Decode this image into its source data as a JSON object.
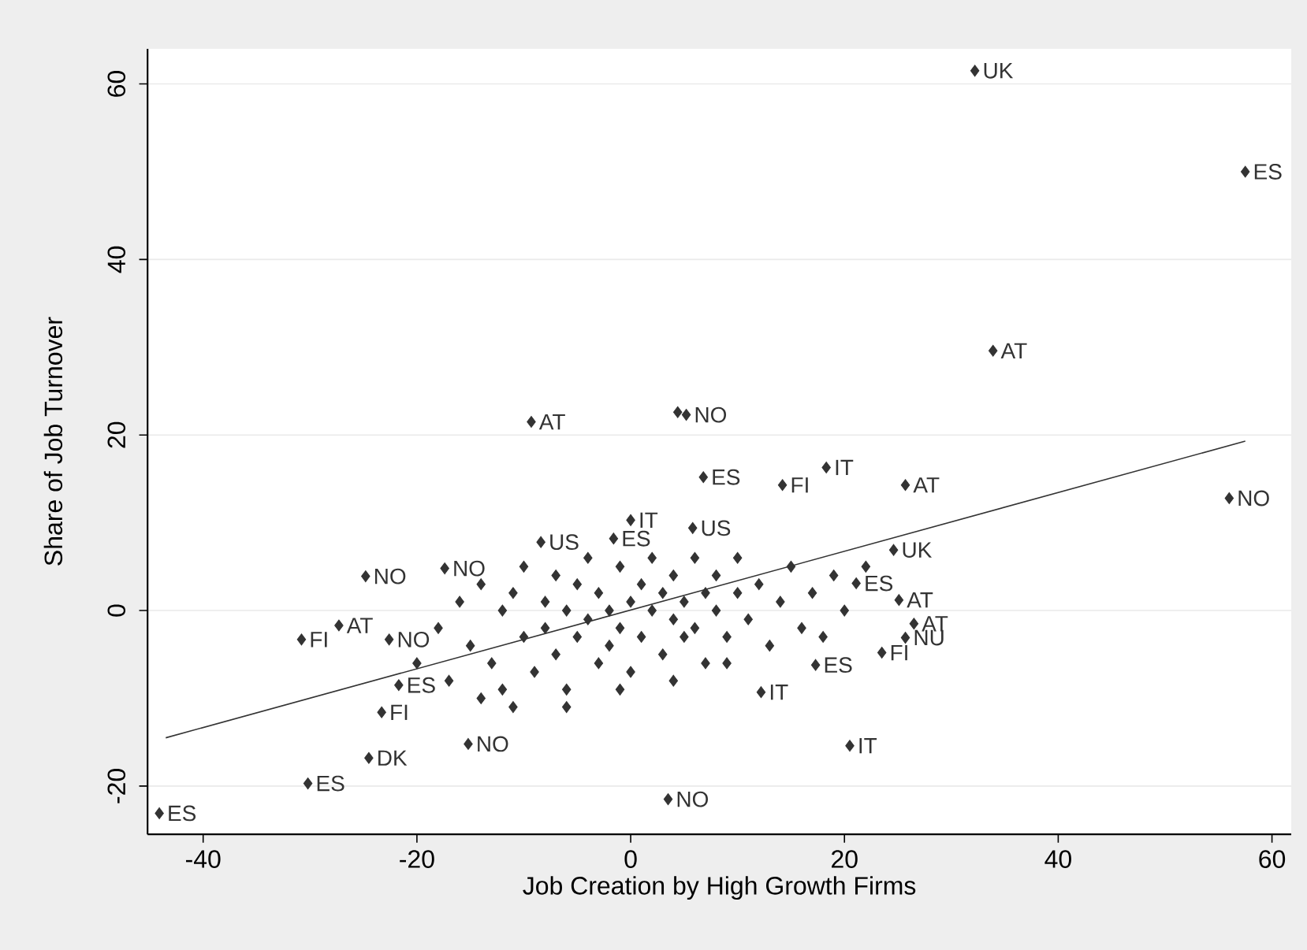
{
  "chart_data": {
    "type": "scatter",
    "xlabel": "Job Creation by High Growth Firms",
    "ylabel": "Share of Job Turnover",
    "xlim": [
      -45.2,
      61.8
    ],
    "ylim": [
      -25.5,
      64
    ],
    "xticks": [
      -40,
      -20,
      0,
      20,
      40,
      60
    ],
    "yticks": [
      -20,
      0,
      20,
      40,
      60
    ],
    "grid": "y",
    "series": [
      {
        "color": "#333333",
        "marker": "diamond",
        "x": [
          32.2,
          57.5,
          33.9,
          56.0,
          -9.3,
          4.4,
          5.2,
          -44.1,
          -30.2,
          -24.5,
          -15.2,
          3.5,
          20.5,
          12.2,
          17.3,
          23.5,
          25.1,
          26.5,
          25.7,
          18.3,
          25.7,
          24.6,
          21.1,
          14.2,
          6.8,
          5.8,
          0.0,
          -1.6,
          -30.8,
          -27.3,
          -24.8,
          -22.6,
          -21.7,
          -23.3,
          -8.4,
          -17.4,
          -18,
          -16,
          -15,
          -14,
          -13,
          -12,
          -12,
          -11,
          -10,
          -10,
          -9,
          -8,
          -8,
          -7,
          -7,
          -6,
          -6,
          -5,
          -5,
          -4,
          -4,
          -3,
          -3,
          -2,
          -2,
          -1,
          -1,
          0,
          0,
          1,
          1,
          2,
          2,
          3,
          3,
          4,
          4,
          5,
          5,
          6,
          6,
          7,
          7,
          8,
          8,
          9,
          10,
          10,
          11,
          12,
          13,
          14,
          15,
          16,
          17,
          18,
          19,
          20,
          22,
          -20,
          -17,
          -14,
          -11,
          -6,
          -1,
          4,
          9
        ],
        "values": [
          61.5,
          50.0,
          29.6,
          12.8,
          21.5,
          22.6,
          22.3,
          -23.1,
          -19.7,
          -16.8,
          -15.2,
          -21.5,
          -15.4,
          -9.3,
          -6.2,
          -4.8,
          1.2,
          -1.5,
          -3.1,
          16.3,
          14.3,
          6.9,
          3.1,
          14.3,
          15.2,
          9.4,
          10.3,
          8.2,
          -3.3,
          -1.7,
          3.9,
          -3.3,
          -8.5,
          -11.6,
          7.8,
          4.8,
          -2,
          1,
          -4,
          3,
          -6,
          0,
          -9,
          2,
          -3,
          5,
          -7,
          1,
          -2,
          4,
          -5,
          0,
          -9,
          3,
          -3,
          6,
          -1,
          -6,
          2,
          0,
          -4,
          5,
          -2,
          1,
          -7,
          3,
          -3,
          0,
          6,
          -5,
          2,
          -1,
          4,
          -3,
          1,
          6,
          -2,
          2,
          -6,
          0,
          4,
          -3,
          2,
          6,
          -1,
          3,
          -4,
          1,
          5,
          -2,
          2,
          -3,
          4,
          0,
          5,
          -6,
          -8,
          -10,
          -11,
          -11,
          -9,
          -8,
          -6
        ]
      },
      {
        "type": "line",
        "marker": "none",
        "color": "#333333",
        "x": [
          -43.5,
          57.5
        ],
        "values": [
          -14.5,
          19.3
        ]
      }
    ],
    "annotations": [
      {
        "text": "UK",
        "x": 32.2,
        "y": 61.5
      },
      {
        "text": "ES",
        "x": 57.5,
        "y": 50.0
      },
      {
        "text": "AT",
        "x": 33.9,
        "y": 29.6
      },
      {
        "text": "NO",
        "x": 56.0,
        "y": 12.8
      },
      {
        "text": "AT",
        "x": -9.3,
        "y": 21.5
      },
      {
        "text": "NO",
        "x": 5.2,
        "y": 22.3
      },
      {
        "text": "ES",
        "x": -44.1,
        "y": -23.1
      },
      {
        "text": "ES",
        "x": -30.2,
        "y": -19.7
      },
      {
        "text": "DK",
        "x": -24.5,
        "y": -16.8
      },
      {
        "text": "NO",
        "x": -15.2,
        "y": -15.2
      },
      {
        "text": "NO",
        "x": 3.5,
        "y": -21.5
      },
      {
        "text": "IT",
        "x": 20.5,
        "y": -15.4
      },
      {
        "text": "IT",
        "x": 12.2,
        "y": -9.3
      },
      {
        "text": "ES",
        "x": 17.3,
        "y": -6.2
      },
      {
        "text": "FI",
        "x": 23.5,
        "y": -4.8
      },
      {
        "text": "AT",
        "x": 25.1,
        "y": 1.2
      },
      {
        "text": "AT",
        "x": 26.5,
        "y": -1.5
      },
      {
        "text": "NU",
        "x": 25.7,
        "y": -3.1
      },
      {
        "text": "IT",
        "x": 18.3,
        "y": 16.3
      },
      {
        "text": "AT",
        "x": 25.7,
        "y": 14.3
      },
      {
        "text": "UK",
        "x": 24.6,
        "y": 6.9
      },
      {
        "text": "ES",
        "x": 21.1,
        "y": 3.1
      },
      {
        "text": "FI",
        "x": 14.2,
        "y": 14.3
      },
      {
        "text": "ES",
        "x": 6.8,
        "y": 15.2
      },
      {
        "text": "US",
        "x": 5.8,
        "y": 9.4
      },
      {
        "text": "IT",
        "x": 0.0,
        "y": 10.3
      },
      {
        "text": "ES",
        "x": -1.6,
        "y": 8.2
      },
      {
        "text": "FI",
        "x": -30.8,
        "y": -3.3
      },
      {
        "text": "AT",
        "x": -27.3,
        "y": -1.7
      },
      {
        "text": "NO",
        "x": -24.8,
        "y": 3.9
      },
      {
        "text": "NO",
        "x": -22.6,
        "y": -3.3
      },
      {
        "text": "ES",
        "x": -21.7,
        "y": -8.5
      },
      {
        "text": "FI",
        "x": -23.3,
        "y": -11.6
      },
      {
        "text": "US",
        "x": -8.4,
        "y": 7.8
      },
      {
        "text": "NO",
        "x": -17.4,
        "y": 4.8
      }
    ]
  }
}
